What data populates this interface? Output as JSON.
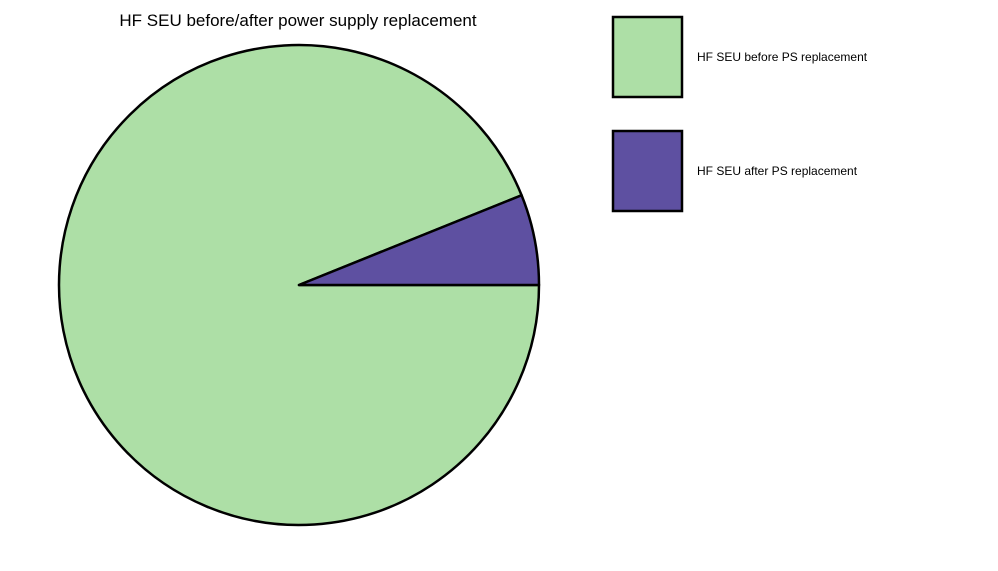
{
  "chart_data": {
    "type": "pie",
    "title": "HF SEU before/after power supply replacement",
    "series": [
      {
        "name": "HF SEU before PS replacement",
        "value": 93.9,
        "color": "#addfa6"
      },
      {
        "name": "HF SEU after PS replacement",
        "value": 6.1,
        "color": "#5e50a1"
      }
    ],
    "start_angle_deg": 0,
    "direction": "clockwise",
    "legend_position": "top-right",
    "grid": false
  }
}
